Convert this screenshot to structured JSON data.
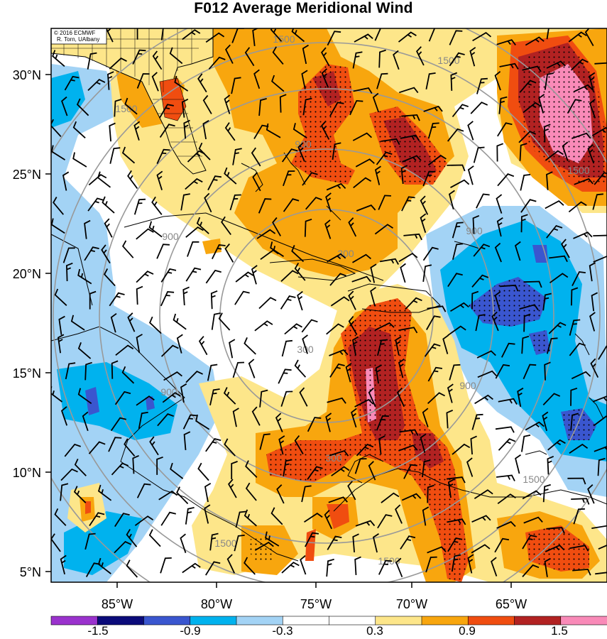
{
  "title": "F012 Average Meridional Wind",
  "credit": [
    "© 2016 ECMWF",
    "R. Torn, UAlbany"
  ],
  "axes": {
    "lat_labels": [
      "30°N",
      "25°N",
      "20°N",
      "15°N",
      "10°N",
      "5°N"
    ],
    "lon_labels": [
      "85°W",
      "80°W",
      "75°W",
      "70°W",
      "65°W"
    ]
  },
  "range_rings": {
    "labels": [
      "300",
      "900",
      "1500"
    ],
    "label_instances": [
      {
        "text": "300",
        "ring": "300"
      },
      {
        "text": "300",
        "ring": "300"
      },
      {
        "text": "300",
        "ring": "300"
      },
      {
        "text": "900",
        "ring": "900"
      },
      {
        "text": "900",
        "ring": "900"
      },
      {
        "text": "900",
        "ring": "900"
      },
      {
        "text": "900",
        "ring": "900"
      },
      {
        "text": "900",
        "ring": "900"
      },
      {
        "text": "1500",
        "ring": "1500"
      },
      {
        "text": "1500",
        "ring": "1500"
      },
      {
        "text": "1500",
        "ring": "1500"
      },
      {
        "text": "1500",
        "ring": "1500"
      },
      {
        "text": "1500",
        "ring": "1500"
      },
      {
        "text": "1500",
        "ring": "1500"
      },
      {
        "text": "1500",
        "ring": "1500"
      }
    ]
  },
  "colorbar": {
    "labels": [
      "-1.5",
      "-0.9",
      "-0.3",
      "0.3",
      "0.9",
      "1.5"
    ],
    "colors": [
      "#9a32cd",
      "#0b0b7a",
      "#3a56cf",
      "#00b2ee",
      "#a3d3f5",
      "#ffffff",
      "#ffffff",
      "#fde68a",
      "#f8a60e",
      "#f04d10",
      "#b22222",
      "#f98ab8"
    ]
  },
  "palette": {
    "light_blue": "#a3d3f5",
    "blue": "#00b2ee",
    "dark_blue": "#3a56cf",
    "yellow": "#fde68a",
    "orange": "#f8a60e",
    "red_orange": "#f04d10",
    "dark_red": "#b22222",
    "pink": "#f98ab8",
    "ring_gray": "#999999",
    "florida_land": "#fde68a"
  }
}
